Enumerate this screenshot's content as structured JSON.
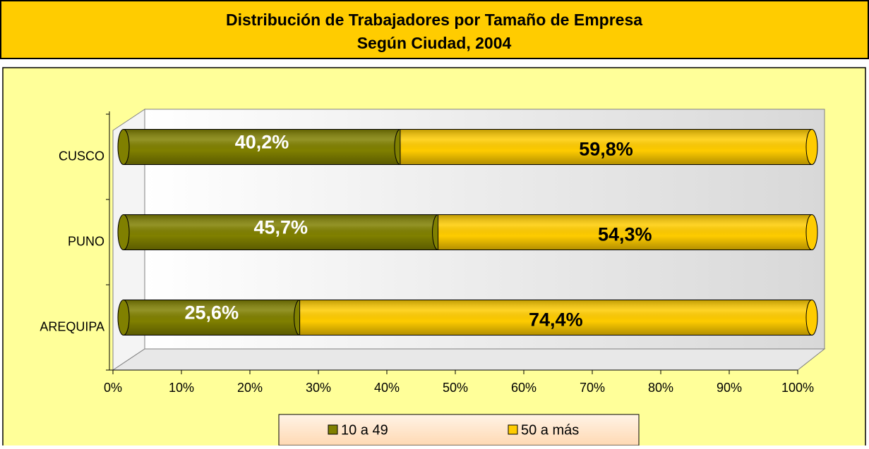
{
  "chart_data": {
    "type": "bar",
    "orientation": "horizontal",
    "stacked": true,
    "title": "Distribución de Trabajadores por Tamaño de Empresa",
    "subtitle": "Según Ciudad, 2004",
    "categories": [
      "AREQUIPA",
      "PUNO",
      "CUSCO"
    ],
    "series": [
      {
        "name": "10 a 49",
        "color": "#808000",
        "label_color": "#ffffff",
        "values": [
          25.6,
          45.7,
          40.2
        ],
        "value_labels": [
          "25,6%",
          "45,7%",
          "40,2%"
        ]
      },
      {
        "name": "50 a más",
        "color": "#ffcc00",
        "label_color": "#000000",
        "values": [
          74.4,
          54.3,
          59.8
        ],
        "value_labels": [
          "74,4%",
          "54,3%",
          "59,8%"
        ]
      }
    ],
    "xlim": [
      0,
      100
    ],
    "xticks": [
      {
        "value": 0,
        "label": "0%"
      },
      {
        "value": 10,
        "label": "10%"
      },
      {
        "value": 20,
        "label": "20%"
      },
      {
        "value": 30,
        "label": "30%"
      },
      {
        "value": 40,
        "label": "40%"
      },
      {
        "value": 50,
        "label": "50%"
      },
      {
        "value": 60,
        "label": "60%"
      },
      {
        "value": 70,
        "label": "70%"
      },
      {
        "value": 80,
        "label": "80%"
      },
      {
        "value": 90,
        "label": "90%"
      },
      {
        "value": 100,
        "label": "100%"
      }
    ],
    "legend": "bottom"
  }
}
